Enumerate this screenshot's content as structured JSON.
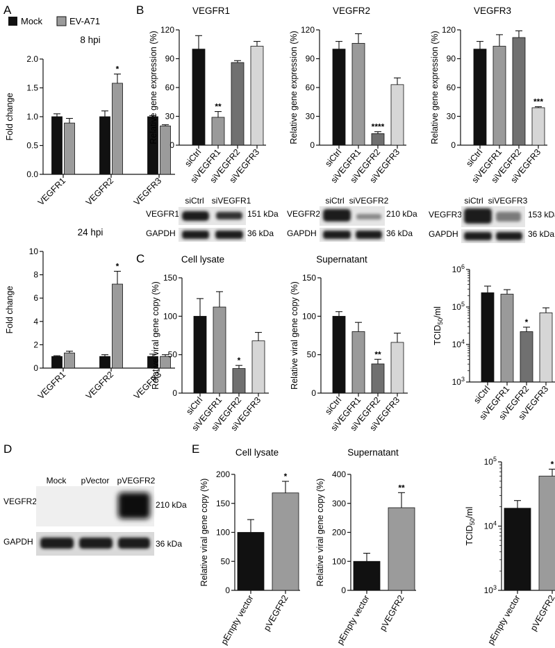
{
  "colors": {
    "mock": "#111111",
    "ev": "#9b9b9b",
    "siCtrl": "#111111",
    "siVEGFR1": "#9a9a9a",
    "siVEGFR2": "#707070",
    "siVEGFR3": "#d6d6d6",
    "pEmpty": "#111111",
    "pVEGFR2": "#9b9b9b"
  },
  "panels": {
    "A": {
      "letter": "A",
      "legend": [
        "Mock",
        "EV-A71"
      ],
      "charts": [
        {
          "title": "8 hpi",
          "ylabel": "Fold change",
          "categories": [
            "VEGFR1",
            "VEGFR2",
            "VEGFR3"
          ],
          "yticks": [
            "0.0",
            "0.5",
            "1.0",
            "1.5",
            "2.0"
          ],
          "ylim": [
            0,
            2.0
          ],
          "series": [
            {
              "name": "Mock",
              "values": [
                1.0,
                1.0,
                1.0
              ],
              "errors": [
                0.05,
                0.1,
                0.02
              ]
            },
            {
              "name": "EV-A71",
              "values": [
                0.89,
                1.58,
                0.84
              ],
              "errors": [
                0.08,
                0.16,
                0.02
              ]
            }
          ],
          "stars": [
            "",
            "*",
            ""
          ]
        },
        {
          "title": "24 hpi",
          "ylabel": "Fold change",
          "categories": [
            "VEGFR1",
            "VEGFR2",
            "VEGFR3"
          ],
          "yticks": [
            "0",
            "2",
            "4",
            "6",
            "8",
            "10"
          ],
          "ylim": [
            0,
            10
          ],
          "series": [
            {
              "name": "Mock",
              "values": [
                1.0,
                1.0,
                1.0
              ],
              "errors": [
                0.06,
                0.15,
                0.2
              ]
            },
            {
              "name": "EV-A71",
              "values": [
                1.3,
                7.2,
                1.0
              ],
              "errors": [
                0.15,
                1.1,
                0.15
              ]
            }
          ],
          "stars": [
            "",
            "*",
            ""
          ]
        }
      ]
    },
    "B": {
      "letter": "B",
      "categories": [
        "siCtrl",
        "siVEGFR1",
        "siVEGFR2",
        "siVEGFR3"
      ],
      "charts": [
        {
          "title": "VEGFR1",
          "ylabel": "Relative gene expression (%)",
          "yticks": [
            "0",
            "30",
            "60",
            "90",
            "120"
          ],
          "ylim": [
            0,
            120
          ],
          "values": [
            100,
            29,
            86,
            103
          ],
          "errors": [
            14,
            6,
            2,
            5
          ],
          "stars": [
            "",
            "**",
            "",
            ""
          ]
        },
        {
          "title": "VEGFR2",
          "ylabel": "Relative gene expression (%)",
          "yticks": [
            "0",
            "30",
            "60",
            "90",
            "120"
          ],
          "ylim": [
            0,
            120
          ],
          "values": [
            100,
            106,
            12,
            63
          ],
          "errors": [
            8,
            10,
            2,
            7
          ],
          "stars": [
            "",
            "",
            "****",
            ""
          ]
        },
        {
          "title": "VEGFR3",
          "ylabel": "Relative gene expression (%)",
          "yticks": [
            "0",
            "30",
            "60",
            "90",
            "120"
          ],
          "ylim": [
            0,
            120
          ],
          "values": [
            100,
            103,
            112,
            39
          ],
          "errors": [
            8,
            12,
            7,
            1
          ],
          "stars": [
            "",
            "",
            "",
            "***"
          ]
        }
      ],
      "blots": [
        {
          "headers": [
            "siCtrl",
            "siVEGFR1"
          ],
          "rows": [
            {
              "label": "VEGFR1",
              "size": "151 kDa"
            },
            {
              "label": "GAPDH",
              "size": "36 kDa"
            }
          ]
        },
        {
          "headers": [
            "siCtrl",
            "siVEGFR2"
          ],
          "rows": [
            {
              "label": "VEGFR2",
              "size": "210 kDa"
            },
            {
              "label": "GAPDH",
              "size": "36 kDa"
            }
          ]
        },
        {
          "headers": [
            "siCtrl",
            "siVEGFR3"
          ],
          "rows": [
            {
              "label": "VEGFR3",
              "size": "153 kDa"
            },
            {
              "label": "GAPDH",
              "size": "36 kDa"
            }
          ]
        }
      ]
    },
    "C": {
      "letter": "C",
      "categories": [
        "siCtrl",
        "siVEGFR1",
        "siVEGFR2",
        "siVEGFR3"
      ],
      "charts": [
        {
          "title": "Cell lysate",
          "ylabel": "Relative viral gene copy (%)",
          "yticks": [
            "0",
            "50",
            "100",
            "150"
          ],
          "ylim": [
            0,
            150
          ],
          "values": [
            100,
            112,
            32,
            68
          ],
          "errors": [
            23,
            20,
            4,
            11
          ],
          "stars": [
            "",
            "",
            "*",
            ""
          ]
        },
        {
          "title": "Supernatant",
          "ylabel": "Relative viral gene copy (%)",
          "yticks": [
            "0",
            "50",
            "100",
            "150"
          ],
          "ylim": [
            0,
            150
          ],
          "values": [
            100,
            80,
            38,
            66
          ],
          "errors": [
            6,
            12,
            6,
            12
          ],
          "stars": [
            "",
            "",
            "**",
            ""
          ]
        },
        {
          "title": "",
          "ylabel": "TCID50/ml",
          "log": true,
          "yticks": [
            "10^3",
            "10^4",
            "10^5",
            "10^6"
          ],
          "ylim": [
            1000,
            1000000
          ],
          "values": [
            240000,
            220000,
            22000,
            70000
          ],
          "errors": [
            120000,
            70000,
            7000,
            25000
          ],
          "stars": [
            "",
            "",
            "*",
            ""
          ]
        }
      ]
    },
    "D": {
      "letter": "D",
      "headers": [
        "Mock",
        "pVector",
        "pVEGFR2"
      ],
      "rows": [
        {
          "label": "VEGFR2",
          "size": "210 kDa"
        },
        {
          "label": "GAPDH",
          "size": "36 kDa"
        }
      ]
    },
    "E": {
      "letter": "E",
      "categories": [
        "pEmpty vector",
        "pVEGFR2"
      ],
      "charts": [
        {
          "title": "Cell lysate",
          "ylabel": "Relative viral gene copy (%)",
          "yticks": [
            "0",
            "50",
            "100",
            "150",
            "200"
          ],
          "ylim": [
            0,
            200
          ],
          "values": [
            100,
            168
          ],
          "errors": [
            22,
            20
          ],
          "stars": [
            "",
            "*"
          ]
        },
        {
          "title": "Supernatant",
          "ylabel": "Relative viral gene copy (%)",
          "yticks": [
            "0",
            "100",
            "200",
            "300",
            "400"
          ],
          "ylim": [
            0,
            400
          ],
          "values": [
            100,
            285
          ],
          "errors": [
            28,
            52
          ],
          "stars": [
            "",
            "**"
          ]
        },
        {
          "title": "",
          "ylabel": "TCID50/ml",
          "log": true,
          "yticks": [
            "10^3",
            "10^4",
            "10^5"
          ],
          "ylim": [
            1000,
            100000
          ],
          "values": [
            19000,
            60000
          ],
          "errors": [
            6000,
            17000
          ],
          "stars": [
            "",
            "*"
          ]
        }
      ]
    }
  },
  "chart_data": [
    {
      "type": "bar",
      "panel": "A",
      "title": "8 hpi",
      "categories": [
        "VEGFR1",
        "VEGFR2",
        "VEGFR3"
      ],
      "series": [
        {
          "name": "Mock",
          "values": [
            1.0,
            1.0,
            1.0
          ]
        },
        {
          "name": "EV-A71",
          "values": [
            0.89,
            1.58,
            0.84
          ]
        }
      ],
      "ylabel": "Fold change",
      "ylim": [
        0,
        2.0
      ]
    },
    {
      "type": "bar",
      "panel": "A",
      "title": "24 hpi",
      "categories": [
        "VEGFR1",
        "VEGFR2",
        "VEGFR3"
      ],
      "series": [
        {
          "name": "Mock",
          "values": [
            1.0,
            1.0,
            1.0
          ]
        },
        {
          "name": "EV-A71",
          "values": [
            1.3,
            7.2,
            1.0
          ]
        }
      ],
      "ylabel": "Fold change",
      "ylim": [
        0,
        10
      ]
    },
    {
      "type": "bar",
      "panel": "B",
      "title": "VEGFR1",
      "categories": [
        "siCtrl",
        "siVEGFR1",
        "siVEGFR2",
        "siVEGFR3"
      ],
      "values": [
        100,
        29,
        86,
        103
      ],
      "ylabel": "Relative gene expression (%)",
      "ylim": [
        0,
        120
      ]
    },
    {
      "type": "bar",
      "panel": "B",
      "title": "VEGFR2",
      "categories": [
        "siCtrl",
        "siVEGFR1",
        "siVEGFR2",
        "siVEGFR3"
      ],
      "values": [
        100,
        106,
        12,
        63
      ],
      "ylabel": "Relative gene expression (%)",
      "ylim": [
        0,
        120
      ]
    },
    {
      "type": "bar",
      "panel": "B",
      "title": "VEGFR3",
      "categories": [
        "siCtrl",
        "siVEGFR1",
        "siVEGFR2",
        "siVEGFR3"
      ],
      "values": [
        100,
        103,
        112,
        39
      ],
      "ylabel": "Relative gene expression (%)",
      "ylim": [
        0,
        120
      ]
    },
    {
      "type": "bar",
      "panel": "C",
      "title": "Cell lysate",
      "categories": [
        "siCtrl",
        "siVEGFR1",
        "siVEGFR2",
        "siVEGFR3"
      ],
      "values": [
        100,
        112,
        32,
        68
      ],
      "ylabel": "Relative viral gene copy (%)",
      "ylim": [
        0,
        150
      ]
    },
    {
      "type": "bar",
      "panel": "C",
      "title": "Supernatant",
      "categories": [
        "siCtrl",
        "siVEGFR1",
        "siVEGFR2",
        "siVEGFR3"
      ],
      "values": [
        100,
        80,
        38,
        66
      ],
      "ylabel": "Relative viral gene copy (%)",
      "ylim": [
        0,
        150
      ]
    },
    {
      "type": "bar",
      "panel": "C",
      "categories": [
        "siCtrl",
        "siVEGFR1",
        "siVEGFR2",
        "siVEGFR3"
      ],
      "values": [
        240000,
        220000,
        22000,
        70000
      ],
      "ylabel": "TCID50/ml",
      "yscale": "log",
      "ylim": [
        1000,
        1000000
      ]
    },
    {
      "type": "bar",
      "panel": "E",
      "title": "Cell lysate",
      "categories": [
        "pEmpty vector",
        "pVEGFR2"
      ],
      "values": [
        100,
        168
      ],
      "ylabel": "Relative viral gene copy (%)",
      "ylim": [
        0,
        200
      ]
    },
    {
      "type": "bar",
      "panel": "E",
      "title": "Supernatant",
      "categories": [
        "pEmpty vector",
        "pVEGFR2"
      ],
      "values": [
        100,
        285
      ],
      "ylabel": "Relative viral gene copy (%)",
      "ylim": [
        0,
        400
      ]
    },
    {
      "type": "bar",
      "panel": "E",
      "categories": [
        "pEmpty vector",
        "pVEGFR2"
      ],
      "values": [
        19000,
        60000
      ],
      "ylabel": "TCID50/ml",
      "yscale": "log",
      "ylim": [
        1000,
        100000
      ]
    }
  ]
}
